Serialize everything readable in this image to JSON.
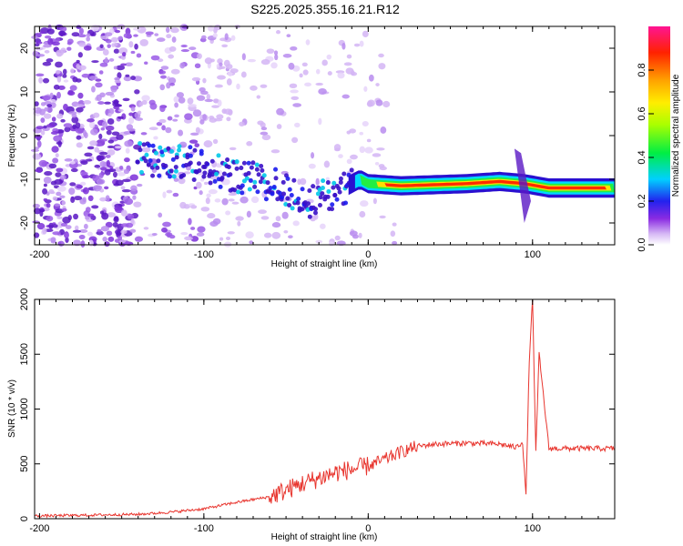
{
  "title": "S225.2025.355.16.21.R12",
  "chart_data": [
    {
      "type": "heatmap",
      "xlabel": "Height of straight line (km)",
      "ylabel": "Frequency (Hz)",
      "xlim": [
        -203,
        150
      ],
      "ylim": [
        -25,
        25
      ],
      "xticks": [
        -200,
        -100,
        0,
        100
      ],
      "yticks": [
        -20,
        -10,
        0,
        10,
        20
      ],
      "colorbar": {
        "label": "Normalized spectral amplitude",
        "range": [
          0,
          1
        ],
        "ticks": [
          0.0,
          0.2,
          0.4,
          0.6,
          0.8
        ]
      },
      "signal_track": [
        {
          "x": -140,
          "y": -5
        },
        {
          "x": -120,
          "y": -6
        },
        {
          "x": -100,
          "y": -7
        },
        {
          "x": -80,
          "y": -9
        },
        {
          "x": -60,
          "y": -11
        },
        {
          "x": -45,
          "y": -13
        },
        {
          "x": -35,
          "y": -15
        },
        {
          "x": -25,
          "y": -14
        },
        {
          "x": -15,
          "y": -12
        },
        {
          "x": -5,
          "y": -10
        },
        {
          "x": 0,
          "y": -11
        },
        {
          "x": 20,
          "y": -11.5
        },
        {
          "x": 60,
          "y": -11
        },
        {
          "x": 80,
          "y": -10.5
        },
        {
          "x": 95,
          "y": -11
        },
        {
          "x": 110,
          "y": -12
        },
        {
          "x": 150,
          "y": -12
        }
      ]
    },
    {
      "type": "line",
      "xlabel": "Height of straight line (km)",
      "ylabel": "SNR (10 * v/v)",
      "xlim": [
        -203,
        150
      ],
      "ylim": [
        0,
        2000
      ],
      "xticks": [
        -200,
        -100,
        0,
        100
      ],
      "yticks": [
        0,
        500,
        1000,
        1500,
        2000
      ],
      "series": [
        {
          "color": "#e8352e",
          "x": [
            -203,
            -180,
            -160,
            -140,
            -120,
            -100,
            -80,
            -60,
            -50,
            -40,
            -30,
            -20,
            -10,
            0,
            10,
            20,
            30,
            40,
            60,
            80,
            90,
            94,
            96,
            98,
            100,
            102,
            104,
            110,
            130,
            150
          ],
          "y": [
            25,
            30,
            35,
            40,
            60,
            90,
            150,
            200,
            260,
            320,
            370,
            420,
            450,
            480,
            540,
            610,
            660,
            680,
            690,
            680,
            650,
            700,
            200,
            1450,
            2000,
            600,
            1500,
            640,
            640,
            640
          ]
        }
      ]
    }
  ]
}
